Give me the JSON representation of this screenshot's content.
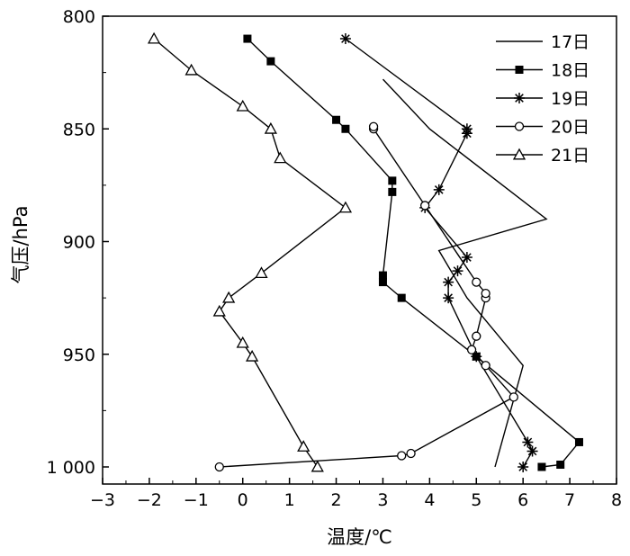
{
  "chart_data": {
    "type": "line",
    "xlabel": "温度/℃",
    "ylabel": "气压/hPa",
    "xlim": [
      -3,
      8
    ],
    "ylim": [
      800,
      1008
    ],
    "y_inverted": true,
    "x_ticks": [
      "−3",
      "−2",
      "−1",
      "0",
      "1",
      "2",
      "3",
      "4",
      "5",
      "6",
      "7",
      "8"
    ],
    "y_ticks": [
      "800",
      "850",
      "900",
      "950",
      "1 000"
    ],
    "grid": false,
    "legend_position": "top-right",
    "series": [
      {
        "name": "17日",
        "marker": "none",
        "x": [
          5.4,
          6.0,
          4.8,
          4.4,
          4.2,
          6.5,
          4.0,
          3.0
        ],
        "y": [
          1000,
          955,
          925,
          911,
          904,
          890,
          850,
          828
        ]
      },
      {
        "name": "18日",
        "marker": "square",
        "x": [
          6.4,
          6.8,
          7.2,
          5.0,
          3.4,
          3.0,
          3.0,
          3.2,
          3.2,
          2.2,
          2.0,
          0.6,
          0.1
        ],
        "y": [
          1000,
          999,
          989,
          951,
          925,
          918,
          915,
          878,
          873,
          850,
          846,
          820,
          810
        ]
      },
      {
        "name": "19日",
        "marker": "asterisk",
        "x": [
          6.0,
          6.2,
          6.1,
          5.0,
          4.4,
          4.4,
          4.6,
          4.8,
          3.9,
          4.2,
          4.8,
          4.8,
          2.2
        ],
        "y": [
          1000,
          993,
          989,
          951,
          925,
          918,
          913,
          907,
          885,
          877,
          852,
          850,
          810
        ]
      },
      {
        "name": "20日",
        "marker": "circle",
        "x": [
          -0.5,
          3.4,
          3.6,
          5.8,
          5.2,
          4.9,
          5.0,
          5.2,
          5.2,
          5.0,
          3.9,
          2.8,
          2.8
        ],
        "y": [
          1000,
          995,
          994,
          969,
          955,
          948,
          942,
          925,
          923,
          918,
          884,
          850,
          849
        ]
      },
      {
        "name": "21日",
        "marker": "triangle",
        "x": [
          1.6,
          1.3,
          0.2,
          0.0,
          -0.5,
          -0.3,
          0.4,
          2.2,
          0.8,
          0.6,
          0.0,
          -1.1,
          -1.9
        ],
        "y": [
          1000,
          991,
          951,
          945,
          931,
          925,
          914,
          885,
          863,
          850,
          840,
          824,
          810
        ]
      }
    ]
  }
}
